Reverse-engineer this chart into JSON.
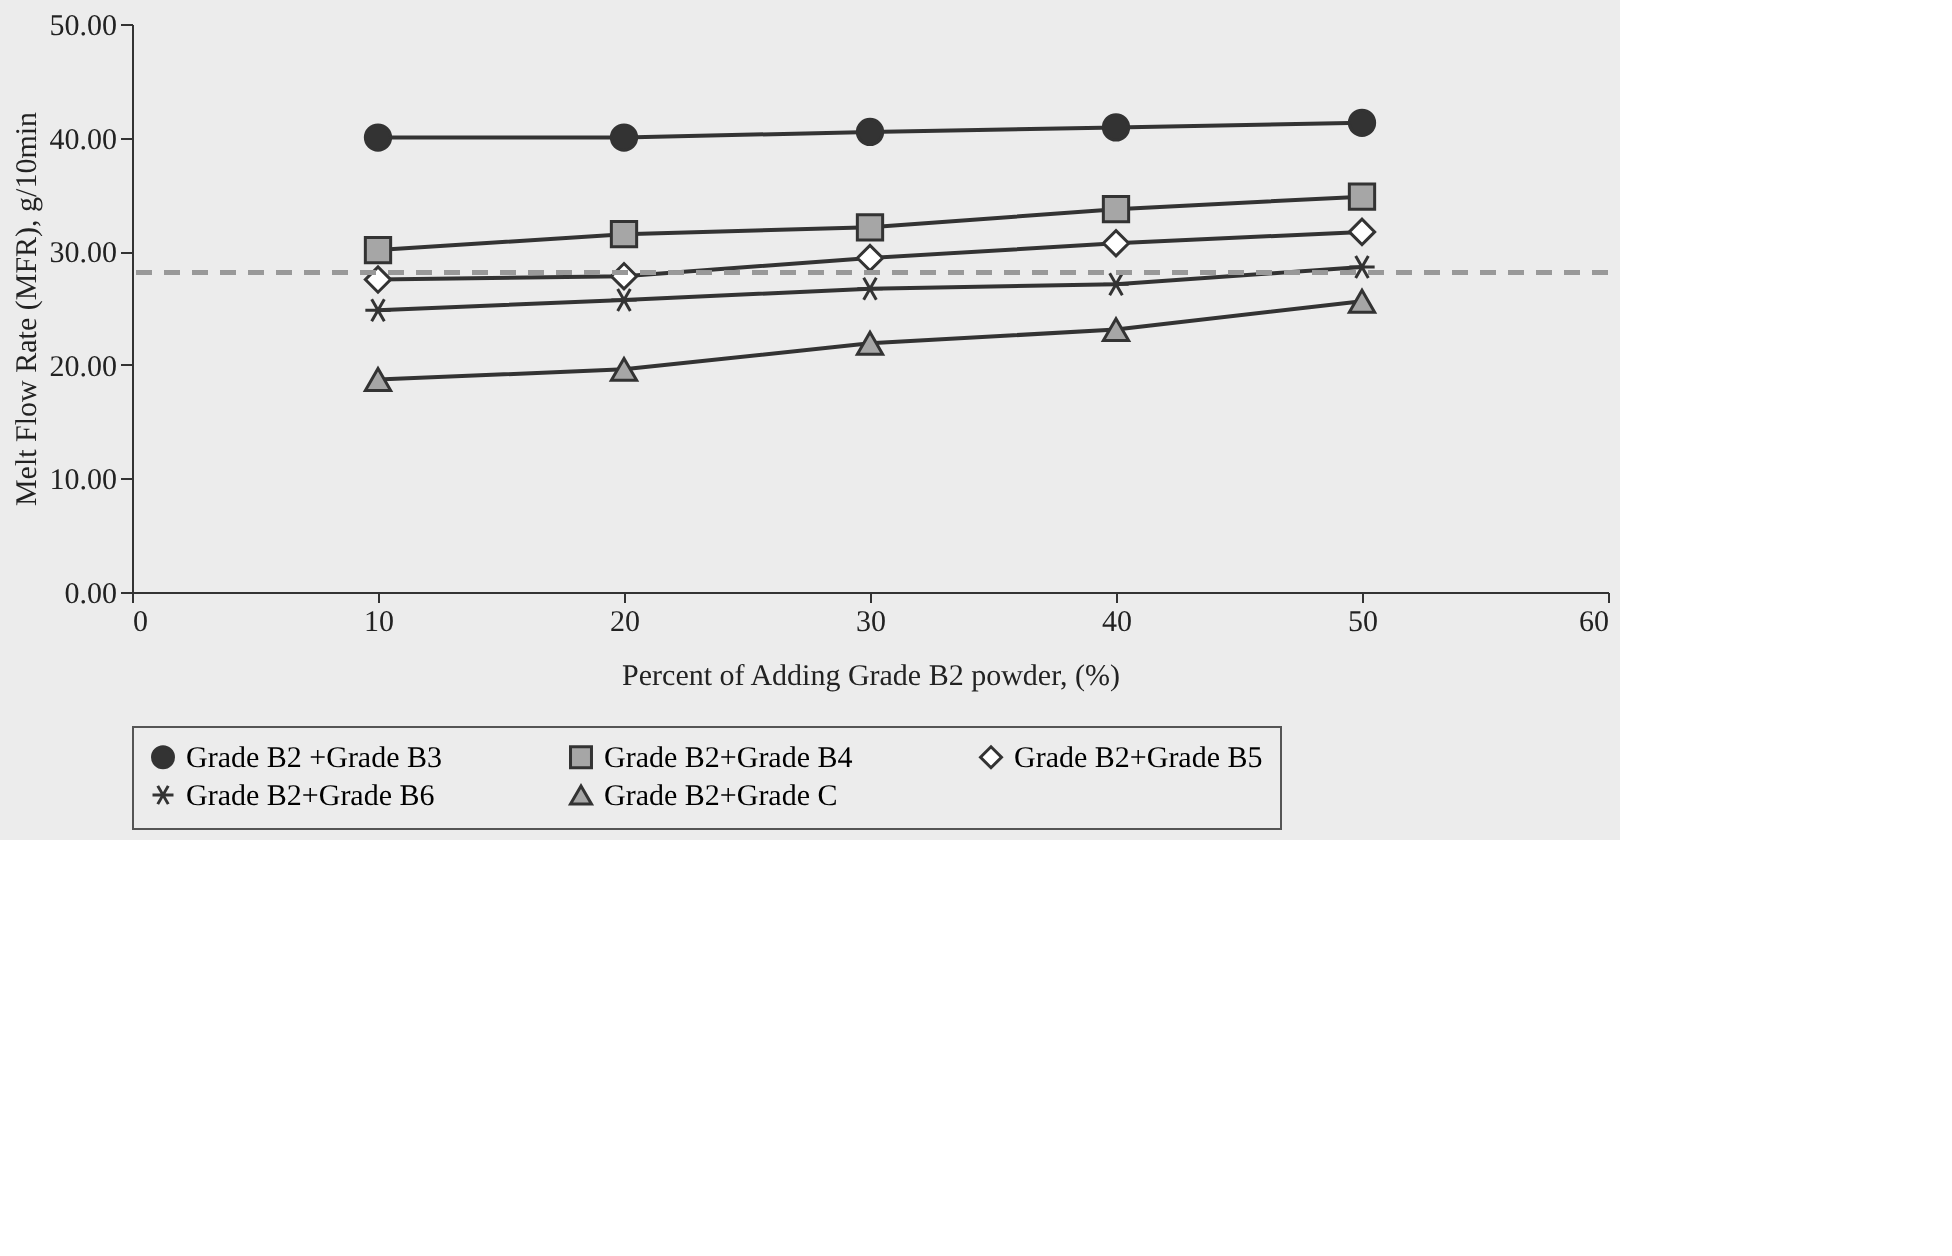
{
  "chart_data": {
    "type": "line",
    "xlabel": "Percent of Adding Grade B2 powder, (%)",
    "ylabel": "Melt Flow Rate (MFR), g/10min",
    "x": [
      10,
      20,
      30,
      40,
      50
    ],
    "series": [
      {
        "name": "Grade B2 +Grade B3",
        "color": "#333333",
        "marker": "circle",
        "values": [
          40.0,
          40.0,
          40.5,
          40.9,
          41.3
        ]
      },
      {
        "name": "Grade B2+Grade B4",
        "color": "#a6a6a6",
        "marker": "square",
        "values": [
          30.1,
          31.5,
          32.1,
          33.7,
          34.8
        ]
      },
      {
        "name": "Grade B2+Grade B5",
        "color": "#ffffff",
        "marker": "diamond",
        "values": [
          27.5,
          27.8,
          29.4,
          30.7,
          31.7
        ]
      },
      {
        "name": "Grade B2+Grade B6",
        "color": "#333333",
        "marker": "cross",
        "values": [
          24.8,
          25.7,
          26.7,
          27.1,
          28.6
        ]
      },
      {
        "name": "Grade B2+Grade C",
        "color": "#a6a6a6",
        "marker": "triangle",
        "values": [
          18.7,
          19.6,
          21.9,
          23.1,
          25.6
        ]
      }
    ],
    "xlim": [
      0,
      60
    ],
    "xticks": [
      0,
      10,
      20,
      30,
      40,
      50,
      60
    ],
    "ylim": [
      0,
      50
    ],
    "yticks": [
      {
        "value": 0,
        "label": "0.00"
      },
      {
        "value": 10,
        "label": "10.00"
      },
      {
        "value": 20,
        "label": "20.00"
      },
      {
        "value": 30,
        "label": "30.00"
      },
      {
        "value": 40,
        "label": "40.00"
      },
      {
        "value": 50,
        "label": "50.00"
      }
    ],
    "ref_lines": [
      {
        "axis": "y",
        "value": 28.1,
        "color": "#999999",
        "line_style": "dashed"
      }
    ],
    "grid": false,
    "legend": "bottom",
    "line_style": "solid"
  }
}
